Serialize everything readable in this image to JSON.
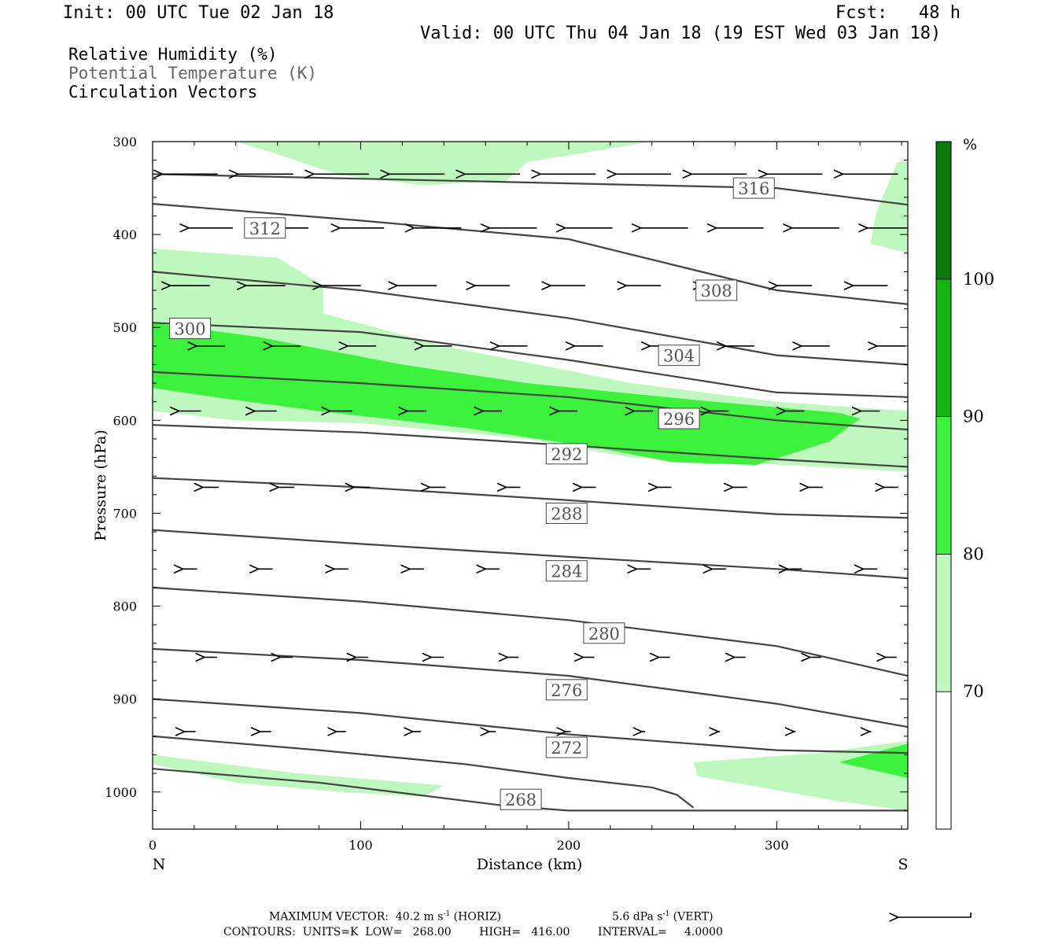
{
  "header": {
    "init": "Init: 00 UTC Tue 02 Jan 18",
    "fcst": "Fcst:   48 h",
    "valid": "Valid: 00 UTC Thu 04 Jan 18 (19 EST Wed 03 Jan 18)",
    "field1": "Relative Humidity (%)",
    "field2": "Potential Temperature (K)",
    "field3": "Circulation Vectors"
  },
  "footer": {
    "max_vector": "MAXIMUM VECTOR:  40.2 m s",
    "horiz": " (HORIZ)",
    "vert_val": "5.6 dPa s",
    "vert": " (VERT)",
    "contours": "CONTOURS:  UNITS=K  LOW=   268.00        HIGH=   416.00        INTERVAL=     4.0000"
  },
  "colors": {
    "rh_70": "#bff8bf",
    "rh_80": "#3cf23c",
    "rh_90": "#14b414",
    "rh_100": "#0a780a",
    "contour": "#444444"
  },
  "chart_data": {
    "type": "contour",
    "xlabel": "Distance (km)",
    "ylabel": "Pressure (hPa)",
    "x_left_label": "N",
    "x_right_label": "S",
    "xlim": [
      0,
      363
    ],
    "ylim": [
      1040,
      300
    ],
    "x_ticks": [
      0,
      100,
      200,
      300
    ],
    "y_ticks": [
      300,
      400,
      500,
      600,
      700,
      800,
      900,
      1000
    ],
    "colorbar": {
      "unit": "%",
      "levels": [
        70,
        80,
        90,
        100
      ]
    },
    "theta_contours": [
      {
        "label": "268",
        "points": [
          [
            0,
            975
          ],
          [
            80,
            990
          ],
          [
            170,
            1015
          ],
          [
            200,
            1020
          ],
          [
            363,
            1020
          ]
        ],
        "label_at": [
          177,
          1008
        ]
      },
      {
        "label": "272",
        "points": [
          [
            0,
            940
          ],
          [
            80,
            955
          ],
          [
            150,
            970
          ],
          [
            200,
            985
          ],
          [
            240,
            995
          ],
          [
            252,
            1003
          ],
          [
            260,
            1017
          ]
        ],
        "label_at": [
          199,
          952
        ]
      },
      {
        "label": "276",
        "points": [
          [
            0,
            900
          ],
          [
            100,
            915
          ],
          [
            200,
            938
          ],
          [
            300,
            955
          ],
          [
            363,
            958
          ]
        ],
        "label_at": [
          199,
          890
        ]
      },
      {
        "label": "280",
        "points": [
          [
            0,
            846
          ],
          [
            100,
            858
          ],
          [
            200,
            875
          ],
          [
            300,
            905
          ],
          [
            363,
            930
          ]
        ],
        "label_at": [
          217,
          829
        ]
      },
      {
        "label": "284",
        "points": [
          [
            0,
            780
          ],
          [
            100,
            795
          ],
          [
            200,
            815
          ],
          [
            300,
            843
          ],
          [
            363,
            875
          ]
        ],
        "label_at": [
          199,
          762
        ]
      },
      {
        "label": "288",
        "points": [
          [
            0,
            718
          ],
          [
            100,
            733
          ],
          [
            200,
            747
          ],
          [
            300,
            760
          ],
          [
            363,
            770
          ]
        ],
        "label_at": [
          199,
          700
        ]
      },
      {
        "label": "292",
        "points": [
          [
            0,
            662
          ],
          [
            100,
            672
          ],
          [
            200,
            686
          ],
          [
            300,
            701
          ],
          [
            363,
            705
          ]
        ],
        "label_at": [
          199,
          636
        ]
      },
      {
        "label": "296",
        "points": [
          [
            0,
            605
          ],
          [
            100,
            613
          ],
          [
            200,
            627
          ],
          [
            300,
            642
          ],
          [
            363,
            650
          ]
        ],
        "label_at": [
          253,
          598
        ]
      },
      {
        "label": "300",
        "points": [
          [
            0,
            548
          ],
          [
            100,
            560
          ],
          [
            200,
            575
          ],
          [
            300,
            600
          ],
          [
            363,
            610
          ]
        ],
        "label_at": [
          18,
          501
        ]
      },
      {
        "label": "304",
        "points": [
          [
            0,
            495
          ],
          [
            100,
            505
          ],
          [
            200,
            535
          ],
          [
            300,
            570
          ],
          [
            363,
            575
          ]
        ],
        "label_at": [
          253,
          530
        ]
      },
      {
        "label": "308",
        "points": [
          [
            0,
            440
          ],
          [
            100,
            460
          ],
          [
            200,
            490
          ],
          [
            300,
            530
          ],
          [
            363,
            540
          ]
        ],
        "label_at": [
          271,
          460
        ]
      },
      {
        "label": "312",
        "points": [
          [
            0,
            367
          ],
          [
            100,
            385
          ],
          [
            200,
            405
          ],
          [
            300,
            460
          ],
          [
            363,
            475
          ]
        ],
        "label_at": [
          54,
          393
        ]
      },
      {
        "label": "316",
        "points": [
          [
            0,
            335
          ],
          [
            100,
            340
          ],
          [
            200,
            345
          ],
          [
            300,
            350
          ],
          [
            363,
            368
          ]
        ],
        "label_at": [
          289,
          350
        ]
      }
    ],
    "rh_regions": [
      {
        "level": 70,
        "points": [
          [
            40,
            300
          ],
          [
            240,
            300
          ],
          [
            180,
            322
          ],
          [
            170,
            342
          ],
          [
            130,
            347
          ],
          [
            90,
            336
          ],
          [
            55,
            310
          ]
        ]
      },
      {
        "level": 70,
        "points": [
          [
            358,
            322
          ],
          [
            363,
            322
          ],
          [
            363,
            420
          ],
          [
            345,
            410
          ],
          [
            348,
            375
          ]
        ]
      },
      {
        "level": 70,
        "points": [
          [
            0,
            415
          ],
          [
            60,
            425
          ],
          [
            82,
            455
          ],
          [
            82,
            485
          ],
          [
            140,
            520
          ],
          [
            230,
            560
          ],
          [
            300,
            580
          ],
          [
            363,
            590
          ],
          [
            363,
            655
          ],
          [
            320,
            650
          ],
          [
            280,
            645
          ],
          [
            230,
            640
          ],
          [
            180,
            620
          ],
          [
            100,
            603
          ],
          [
            40,
            600
          ],
          [
            0,
            590
          ]
        ]
      },
      {
        "level": 80,
        "points": [
          [
            0,
            495
          ],
          [
            50,
            510
          ],
          [
            120,
            540
          ],
          [
            180,
            560
          ],
          [
            260,
            578
          ],
          [
            330,
            592
          ],
          [
            340,
            598
          ],
          [
            325,
            623
          ],
          [
            290,
            648
          ],
          [
            250,
            645
          ],
          [
            215,
            630
          ],
          [
            150,
            608
          ],
          [
            80,
            590
          ],
          [
            30,
            575
          ],
          [
            0,
            565
          ]
        ]
      },
      {
        "level": 70,
        "points": [
          [
            0,
            960
          ],
          [
            70,
            980
          ],
          [
            140,
            993
          ],
          [
            130,
            1005
          ],
          [
            90,
            1000
          ],
          [
            40,
            990
          ],
          [
            0,
            970
          ]
        ]
      },
      {
        "level": 70,
        "points": [
          [
            260,
            968
          ],
          [
            320,
            958
          ],
          [
            363,
            945
          ],
          [
            363,
            1020
          ],
          [
            330,
            1010
          ],
          [
            300,
            998
          ],
          [
            262,
            983
          ]
        ]
      },
      {
        "level": 80,
        "points": [
          [
            330,
            968
          ],
          [
            363,
            948
          ],
          [
            363,
            985
          ]
        ]
      }
    ],
    "vectors": {
      "rows": [
        {
          "p": 335,
          "lengths": [
            35,
            35,
            35,
            35,
            35,
            35,
            35,
            35,
            35,
            35
          ]
        },
        {
          "p": 393,
          "lengths": [
            28,
            28,
            28,
            30,
            30,
            30,
            30,
            30,
            30,
            30
          ]
        },
        {
          "p": 455,
          "lengths": [
            25,
            25,
            25,
            25,
            22,
            22,
            22,
            22,
            22,
            22
          ]
        },
        {
          "p": 520,
          "lengths": [
            18,
            18,
            18,
            18,
            18,
            18,
            18,
            18,
            18,
            18
          ]
        },
        {
          "p": 590,
          "lengths": [
            14,
            14,
            14,
            12,
            12,
            12,
            12,
            12,
            12,
            12
          ]
        },
        {
          "p": 672,
          "lengths": [
            10,
            10,
            10,
            10,
            9,
            9,
            9,
            9,
            9,
            9
          ]
        },
        {
          "p": 760,
          "lengths": [
            9,
            9,
            9,
            9,
            9,
            9,
            9,
            9,
            9,
            9
          ]
        },
        {
          "p": 855,
          "lengths": [
            8,
            8,
            8,
            8,
            7,
            7,
            7,
            7,
            7,
            7
          ]
        },
        {
          "p": 935,
          "lengths": [
            7,
            7,
            6,
            5,
            4,
            3,
            2,
            1,
            1,
            1
          ]
        }
      ],
      "reference": {
        "speed": "40.2 m s-1",
        "vertical": "5.6 dPa s-1"
      }
    }
  }
}
